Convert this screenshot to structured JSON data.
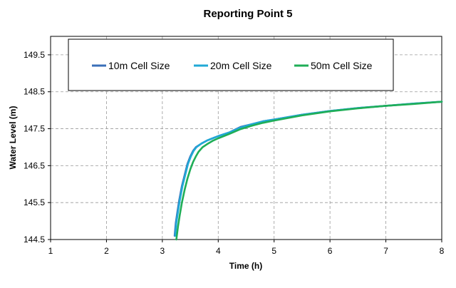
{
  "chart_data": {
    "type": "line",
    "title": "Reporting Point 5",
    "xlabel": "Time (h)",
    "ylabel": "Water Level (m)",
    "xlim": [
      1,
      8
    ],
    "ylim": [
      144.5,
      150.0
    ],
    "xticks": [
      1,
      2,
      3,
      4,
      5,
      6,
      7,
      8
    ],
    "yticks": [
      144.5,
      145.5,
      146.5,
      147.5,
      148.5,
      149.5
    ],
    "ytick_labels": [
      "144.5",
      "145.5",
      "146.5",
      "147.5",
      "148.5",
      "149.5"
    ],
    "grid": true,
    "legend_position": "top",
    "series": [
      {
        "name": "10m Cell Size",
        "color": "#3a6fb8",
        "x": [
          3.22,
          3.24,
          3.27,
          3.3,
          3.35,
          3.4,
          3.45,
          3.5,
          3.55,
          3.6,
          3.7,
          3.8,
          3.9,
          4.0,
          4.2,
          4.4,
          4.6,
          4.8,
          5.0,
          5.5,
          6.0,
          6.5,
          7.0,
          7.5,
          8.0
        ],
        "y": [
          144.6,
          144.95,
          145.25,
          145.55,
          145.95,
          146.25,
          146.55,
          146.75,
          146.9,
          147.0,
          147.1,
          147.18,
          147.24,
          147.3,
          147.4,
          147.55,
          147.62,
          147.7,
          147.75,
          147.88,
          147.98,
          148.06,
          148.12,
          148.18,
          148.23
        ]
      },
      {
        "name": "20m Cell Size",
        "color": "#21a9d6",
        "x": [
          3.23,
          3.25,
          3.28,
          3.31,
          3.36,
          3.41,
          3.46,
          3.51,
          3.56,
          3.61,
          3.7,
          3.8,
          3.9,
          4.0,
          4.2,
          4.4,
          4.6,
          4.8,
          5.0,
          5.5,
          6.0,
          6.5,
          7.0,
          7.5,
          8.0
        ],
        "y": [
          144.6,
          144.95,
          145.25,
          145.55,
          145.95,
          146.25,
          146.55,
          146.75,
          146.9,
          147.0,
          147.1,
          147.18,
          147.24,
          147.3,
          147.4,
          147.53,
          147.62,
          147.7,
          147.75,
          147.88,
          147.98,
          148.06,
          148.12,
          148.18,
          148.23
        ]
      },
      {
        "name": "50m Cell Size",
        "color": "#1fae57",
        "x": [
          3.25,
          3.28,
          3.31,
          3.35,
          3.4,
          3.45,
          3.5,
          3.55,
          3.6,
          3.65,
          3.72,
          3.8,
          3.9,
          4.0,
          4.2,
          4.4,
          4.6,
          4.8,
          5.0,
          5.5,
          6.0,
          6.5,
          7.0,
          7.5,
          8.0
        ],
        "y": [
          144.5,
          144.85,
          145.15,
          145.5,
          145.85,
          146.15,
          146.4,
          146.6,
          146.75,
          146.88,
          147.0,
          147.08,
          147.17,
          147.24,
          147.36,
          147.49,
          147.58,
          147.66,
          147.72,
          147.86,
          147.97,
          148.05,
          148.12,
          148.17,
          148.23
        ]
      }
    ]
  }
}
